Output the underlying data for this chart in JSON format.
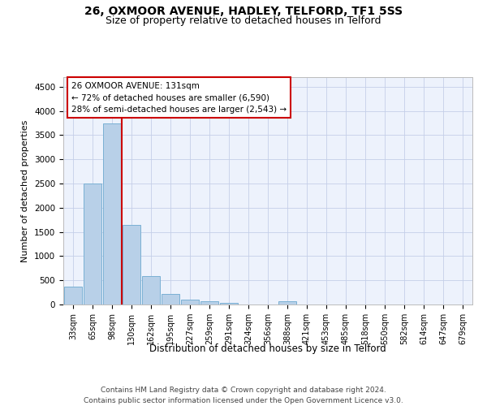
{
  "title1": "26, OXMOOR AVENUE, HADLEY, TELFORD, TF1 5SS",
  "title2": "Size of property relative to detached houses in Telford",
  "xlabel": "Distribution of detached houses by size in Telford",
  "ylabel": "Number of detached properties",
  "footer": "Contains HM Land Registry data © Crown copyright and database right 2024.\nContains public sector information licensed under the Open Government Licence v3.0.",
  "bin_labels": [
    "33sqm",
    "65sqm",
    "98sqm",
    "130sqm",
    "162sqm",
    "195sqm",
    "227sqm",
    "259sqm",
    "291sqm",
    "324sqm",
    "356sqm",
    "388sqm",
    "421sqm",
    "453sqm",
    "485sqm",
    "518sqm",
    "550sqm",
    "582sqm",
    "614sqm",
    "647sqm",
    "679sqm"
  ],
  "bar_values": [
    370,
    2500,
    3750,
    1640,
    590,
    225,
    105,
    60,
    40,
    0,
    0,
    60,
    0,
    0,
    0,
    0,
    0,
    0,
    0,
    0,
    0
  ],
  "bar_color": "#b8d0e8",
  "bar_edgecolor": "#7ab0d4",
  "vline_x": 2.5,
  "vline_color": "#cc0000",
  "annotation_text_line1": "26 OXMOOR AVENUE: 131sqm",
  "annotation_text_line2": "← 72% of detached houses are smaller (6,590)",
  "annotation_text_line3": "28% of semi-detached houses are larger (2,543) →",
  "annotation_box_edgecolor": "#cc0000",
  "ylim": [
    0,
    4700
  ],
  "yticks": [
    0,
    500,
    1000,
    1500,
    2000,
    2500,
    3000,
    3500,
    4000,
    4500
  ],
  "bg_color": "#edf2fc",
  "grid_color": "#c5cfe8",
  "title1_fontsize": 10,
  "title2_fontsize": 9,
  "tick_fontsize": 7,
  "ylabel_fontsize": 8,
  "xlabel_fontsize": 8.5,
  "annotation_fontsize": 7.5,
  "footer_fontsize": 6.5
}
